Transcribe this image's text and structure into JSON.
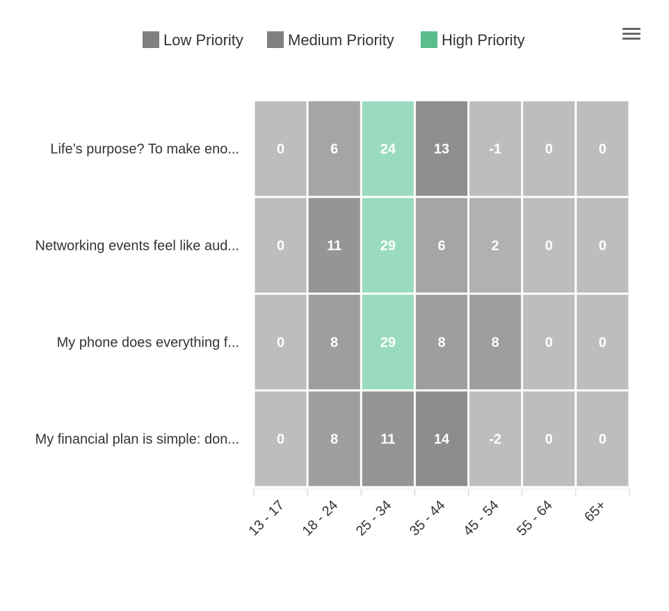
{
  "chart_data": {
    "type": "heatmap",
    "title": "",
    "xlabel": "",
    "ylabel": "",
    "legend": {
      "placement": "top-center",
      "items": [
        {
          "label": "Low Priority",
          "color": "#808080"
        },
        {
          "label": "Medium Priority",
          "color": "#808080"
        },
        {
          "label": "High Priority",
          "color": "#5bbd8b"
        }
      ]
    },
    "x_categories": [
      "13 - 17",
      "18 - 24",
      "25 - 34",
      "35 - 44",
      "45 - 54",
      "55 - 64",
      "65+"
    ],
    "y_categories": [
      "Life’s purpose? To make eno...",
      "Networking events feel like aud...",
      "My phone does everything f...",
      "My financial plan is simple: don..."
    ],
    "values": [
      [
        0,
        6,
        24,
        13,
        -1,
        0,
        0
      ],
      [
        0,
        11,
        29,
        6,
        2,
        0,
        0
      ],
      [
        0,
        8,
        29,
        8,
        8,
        0,
        0
      ],
      [
        0,
        8,
        11,
        14,
        -2,
        0,
        0
      ]
    ],
    "high_threshold": 20,
    "colors": {
      "high_cell": "#9adbc0",
      "low_cell": "#bdbdbd",
      "dark_cell": "#8c8c8c",
      "cell_label": "#ffffff",
      "axis_label": "#333333"
    }
  },
  "toolbar": {
    "menu_icon": "hamburger-menu-icon"
  }
}
